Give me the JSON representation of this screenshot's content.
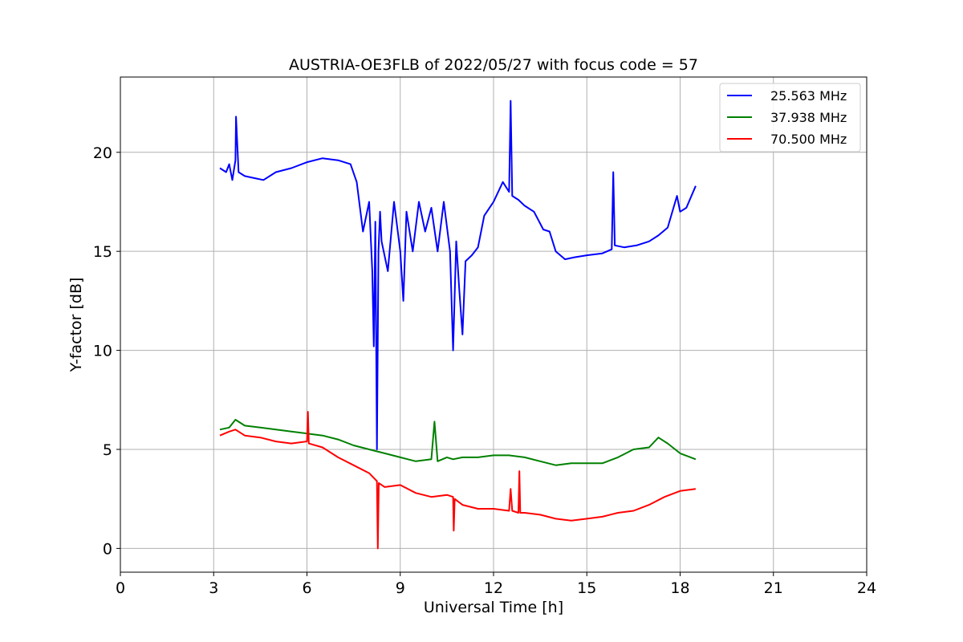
{
  "chart_data": {
    "type": "line",
    "title": "AUSTRIA-OE3FLB of 2022/05/27 with focus code = 57",
    "xlabel": "Universal Time [h]",
    "ylabel": "Y-factor [dB]",
    "xlim": [
      0,
      24
    ],
    "ylim": [
      -1.2,
      23.8
    ],
    "xticks": [
      0,
      3,
      6,
      9,
      12,
      15,
      18,
      21,
      24
    ],
    "yticks": [
      0,
      5,
      10,
      15,
      20
    ],
    "grid": true,
    "legend_position": "top-right",
    "series": [
      {
        "name": "25.563 MHz",
        "color": "#0000ff",
        "x": [
          3.2,
          3.4,
          3.5,
          3.6,
          3.7,
          3.72,
          3.8,
          4.0,
          4.3,
          4.6,
          5.0,
          5.5,
          6.0,
          6.5,
          7.0,
          7.4,
          7.6,
          7.8,
          8.0,
          8.1,
          8.15,
          8.2,
          8.25,
          8.3,
          8.35,
          8.4,
          8.6,
          8.8,
          9.0,
          9.1,
          9.2,
          9.4,
          9.6,
          9.8,
          10.0,
          10.2,
          10.4,
          10.6,
          10.7,
          10.8,
          10.9,
          11.0,
          11.1,
          11.3,
          11.5,
          11.7,
          12.0,
          12.3,
          12.5,
          12.55,
          12.6,
          12.8,
          13.0,
          13.3,
          13.6,
          13.8,
          14.0,
          14.3,
          14.6,
          15.0,
          15.5,
          15.8,
          15.85,
          15.9,
          16.2,
          16.6,
          17.0,
          17.3,
          17.6,
          17.9,
          18.0,
          18.2,
          18.5
        ],
        "y": [
          19.2,
          19.0,
          19.4,
          18.6,
          19.6,
          21.8,
          19.0,
          18.8,
          18.7,
          18.6,
          19.0,
          19.2,
          19.5,
          19.7,
          19.6,
          19.4,
          18.5,
          16.0,
          17.5,
          14.0,
          10.2,
          16.5,
          5.0,
          15.0,
          17.0,
          15.5,
          14.0,
          17.5,
          15.0,
          12.5,
          17.0,
          15.0,
          17.5,
          16.0,
          17.2,
          15.0,
          17.5,
          15.0,
          10.0,
          15.5,
          13.0,
          10.8,
          14.5,
          14.8,
          15.2,
          16.8,
          17.5,
          18.5,
          18.0,
          22.6,
          17.8,
          17.6,
          17.3,
          17.0,
          16.1,
          16.0,
          15.0,
          14.6,
          14.7,
          14.8,
          14.9,
          15.1,
          19.0,
          15.3,
          15.2,
          15.3,
          15.5,
          15.8,
          16.2,
          17.8,
          17.0,
          17.2,
          18.3
        ]
      },
      {
        "name": "37.938 MHz",
        "color": "#008000",
        "x": [
          3.2,
          3.5,
          3.7,
          4.0,
          4.5,
          5.0,
          5.5,
          6.0,
          6.5,
          7.0,
          7.5,
          8.0,
          8.5,
          9.0,
          9.5,
          10.0,
          10.1,
          10.2,
          10.5,
          10.7,
          11.0,
          11.5,
          12.0,
          12.5,
          13.0,
          13.5,
          14.0,
          14.5,
          15.0,
          15.5,
          16.0,
          16.5,
          17.0,
          17.3,
          17.6,
          18.0,
          18.5
        ],
        "y": [
          6.0,
          6.1,
          6.5,
          6.2,
          6.1,
          6.0,
          5.9,
          5.8,
          5.7,
          5.5,
          5.2,
          5.0,
          4.8,
          4.6,
          4.4,
          4.5,
          6.4,
          4.4,
          4.6,
          4.5,
          4.6,
          4.6,
          4.7,
          4.7,
          4.6,
          4.4,
          4.2,
          4.3,
          4.3,
          4.3,
          4.6,
          5.0,
          5.1,
          5.6,
          5.3,
          4.8,
          4.5
        ]
      },
      {
        "name": "70.500 MHz",
        "color": "#ff0000",
        "x": [
          3.2,
          3.5,
          3.7,
          4.0,
          4.5,
          5.0,
          5.5,
          6.0,
          6.03,
          6.06,
          6.5,
          7.0,
          7.5,
          8.0,
          8.25,
          8.28,
          8.31,
          8.5,
          9.0,
          9.5,
          10.0,
          10.5,
          10.7,
          10.72,
          10.75,
          11.0,
          11.5,
          12.0,
          12.5,
          12.55,
          12.6,
          12.8,
          12.83,
          12.86,
          13.0,
          13.5,
          14.0,
          14.5,
          15.0,
          15.5,
          16.0,
          16.5,
          17.0,
          17.5,
          18.0,
          18.5
        ],
        "y": [
          5.7,
          5.9,
          6.0,
          5.7,
          5.6,
          5.4,
          5.3,
          5.4,
          6.9,
          5.3,
          5.1,
          4.6,
          4.2,
          3.8,
          3.4,
          0.0,
          3.3,
          3.1,
          3.2,
          2.8,
          2.6,
          2.7,
          2.6,
          0.9,
          2.5,
          2.2,
          2.0,
          2.0,
          1.9,
          3.0,
          1.9,
          1.8,
          3.9,
          1.8,
          1.8,
          1.7,
          1.5,
          1.4,
          1.5,
          1.6,
          1.8,
          1.9,
          2.2,
          2.6,
          2.9,
          3.0
        ]
      }
    ]
  }
}
